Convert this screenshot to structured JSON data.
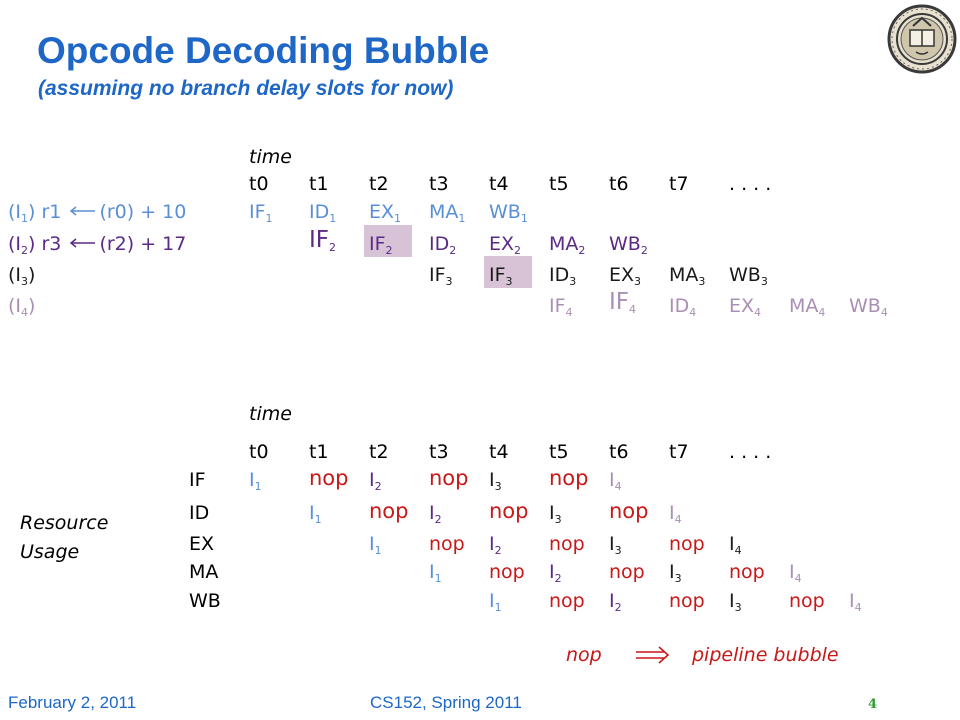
{
  "slide": {
    "title": "Opcode Decoding Bubble",
    "subtitle": "(assuming no branch delay slots for now)"
  },
  "footer": {
    "date": "February 2, 2011",
    "course": "CS152, Spring 2011",
    "page": "4"
  },
  "colors": {
    "title": "#1e67c6",
    "I1": "#5a8fd6",
    "I2": "#5b2a86",
    "I3": "#1a1a1a",
    "I4": "#a98fb3",
    "nop": "#c81818",
    "highlight": "#d7c3d5"
  },
  "icons": {
    "seal": "university-seal-icon",
    "arrow": "left-arrow-icon",
    "implies": "implies-arrow-icon"
  },
  "time_header": {
    "label": "time",
    "cycles": [
      "t0",
      "t1",
      "t2",
      "t3",
      "t4",
      "t5",
      "t6",
      "t7",
      ". . . ."
    ]
  },
  "instructions": [
    {
      "label_pre": "(I",
      "label_sub": "1",
      "label_post": ") r1 ",
      "label_tail": "(r0) + 10"
    },
    {
      "label_pre": "(I",
      "label_sub": "2",
      "label_post": ") r3 ",
      "label_tail": "(r2) + 17"
    },
    {
      "label_pre": "(I",
      "label_sub": "3",
      "label_post": ")",
      "label_tail": ""
    },
    {
      "label_pre": "(I",
      "label_sub": "4",
      "label_post": ")",
      "label_tail": ""
    }
  ],
  "stages": {
    "IF": "IF",
    "ID": "ID",
    "EX": "EX",
    "MA": "MA",
    "WB": "WB",
    "nop": "nop",
    "I": "I",
    "sub1": "1",
    "sub2": "2",
    "sub3": "3",
    "sub4": "4"
  },
  "resource_usage": {
    "label_line1": "Resource",
    "label_line2": "Usage",
    "stage_rows": [
      "IF",
      "ID",
      "EX",
      "MA",
      "WB"
    ]
  },
  "legend": {
    "nop": "nop",
    "meaning": "pipeline bubble"
  }
}
